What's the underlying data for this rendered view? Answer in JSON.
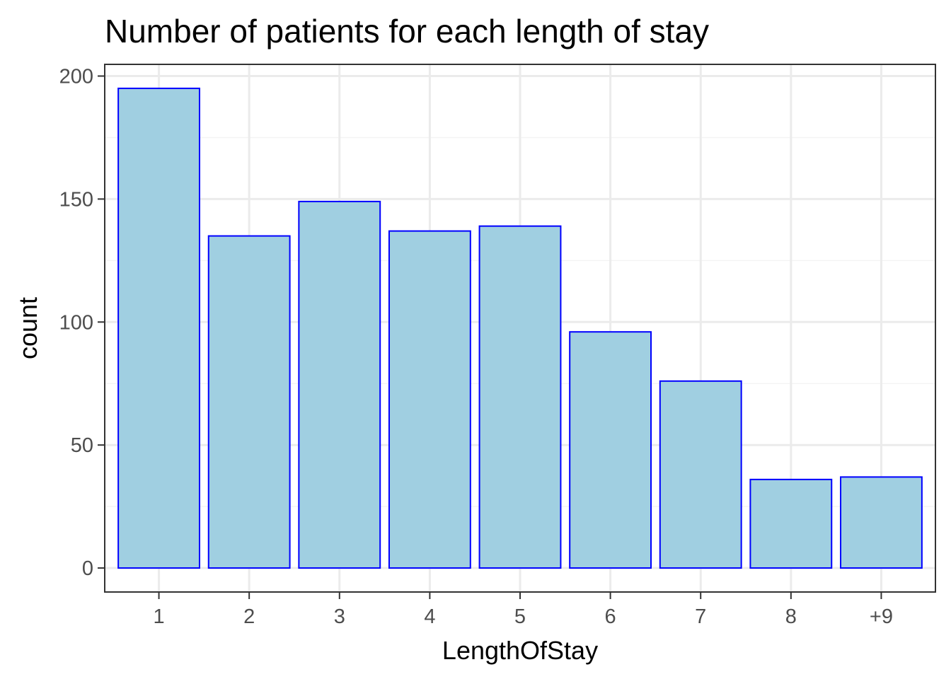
{
  "chart_data": {
    "type": "bar",
    "title": "Number of patients for each length of stay",
    "xlabel": "LengthOfStay",
    "ylabel": "count",
    "categories": [
      "1",
      "2",
      "3",
      "4",
      "5",
      "6",
      "7",
      "8",
      "+9"
    ],
    "values": [
      195,
      135,
      149,
      137,
      139,
      96,
      76,
      36,
      37
    ],
    "ylim": [
      -9.75,
      204.75
    ],
    "yticks": [
      "0",
      "50",
      "100",
      "150",
      "200"
    ],
    "grid": true,
    "legend": "none",
    "colors": {
      "bar_fill": "#a0cfe1",
      "bar_stroke": "#0000ff",
      "grid_major": "#ebebeb",
      "grid_minor": "#f4f4f4",
      "panel_border": "#333333"
    }
  }
}
